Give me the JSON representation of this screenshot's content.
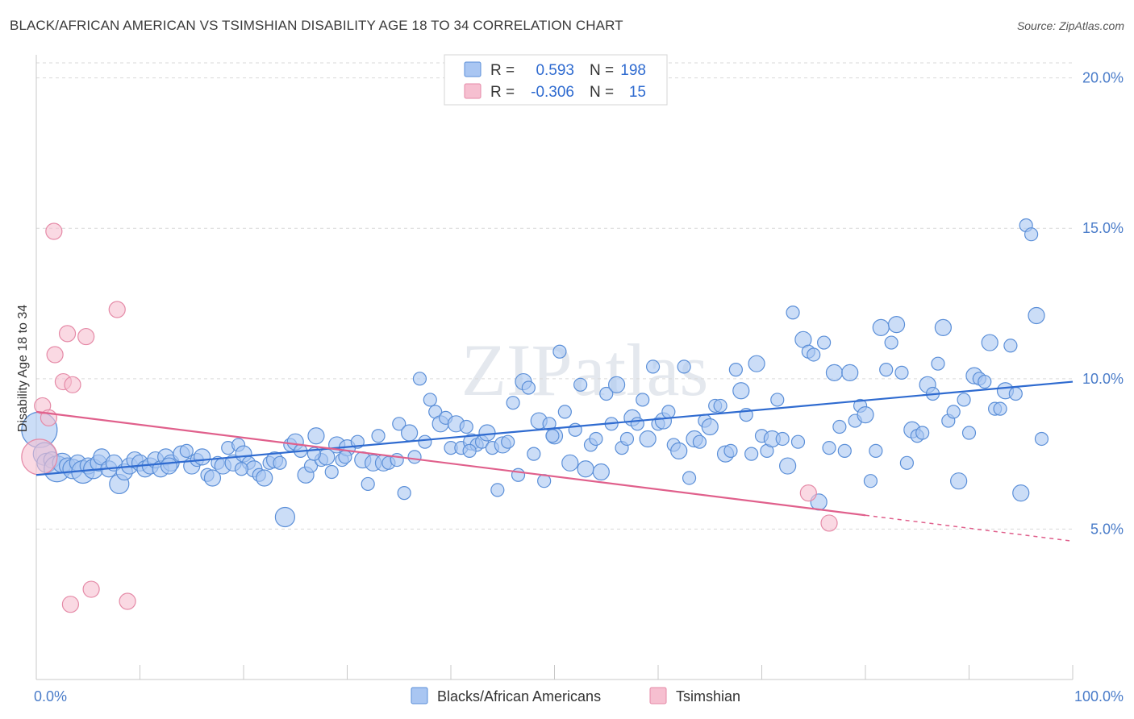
{
  "title": "BLACK/AFRICAN AMERICAN VS TSIMSHIAN DISABILITY AGE 18 TO 34 CORRELATION CHART",
  "source": "Source: ZipAtlas.com",
  "watermark": "ZIPatlas",
  "colors": {
    "blue_fill": "#a9c6f2",
    "blue_stroke": "#5b8fd8",
    "blue_line": "#2f6bd0",
    "pink_fill": "#f6bfd0",
    "pink_stroke": "#e58aa7",
    "pink_line": "#e0608c",
    "grid": "#d9d9d9",
    "tick_text": "#4a7cc9"
  },
  "legend": {
    "rows": [
      {
        "r_label": "R =",
        "r_value": "0.593",
        "n_label": "N =",
        "n_value": "198"
      },
      {
        "r_label": "R =",
        "r_value": "-0.306",
        "n_label": "N =",
        "n_value": "15"
      }
    ]
  },
  "bottom_legend": [
    "Blacks/African Americans",
    "Tsimshian"
  ],
  "chart_data": {
    "type": "scatter",
    "xlabel": "",
    "ylabel": "Disability Age 18 to 34",
    "x_range": [
      0,
      100
    ],
    "y_range": [
      0,
      20.5
    ],
    "x_tick_labels": [
      "0.0%",
      "100.0%"
    ],
    "y_ticks": [
      5,
      10,
      15,
      20
    ],
    "y_tick_labels": [
      "5.0%",
      "10.0%",
      "15.0%",
      "20.0%"
    ],
    "grid": true,
    "series": [
      {
        "name": "Blacks/African Americans",
        "trend": {
          "x": [
            0,
            100
          ],
          "y": [
            6.8,
            9.9
          ],
          "solid_to": 100
        },
        "points": [
          [
            0.3,
            8.3,
            22
          ],
          [
            0.8,
            7.5,
            14
          ],
          [
            1,
            7.2,
            12
          ],
          [
            1.5,
            7.3,
            10
          ],
          [
            2,
            7.0,
            16
          ],
          [
            2.5,
            7.2,
            12
          ],
          [
            3,
            7.1,
            10
          ],
          [
            3.5,
            7.0,
            12
          ],
          [
            4,
            7.2,
            10
          ],
          [
            4.5,
            6.9,
            14
          ],
          [
            5,
            7.1,
            10
          ],
          [
            5.5,
            7.0,
            12
          ],
          [
            6,
            7.2,
            10
          ],
          [
            6.3,
            7.4,
            10
          ],
          [
            7,
            7.0,
            10
          ],
          [
            7.5,
            7.2,
            10
          ],
          [
            8,
            6.5,
            12
          ],
          [
            8.5,
            6.9,
            10
          ],
          [
            9,
            7.1,
            10
          ],
          [
            9.5,
            7.3,
            10
          ],
          [
            10,
            7.2,
            10
          ],
          [
            10.5,
            7.0,
            10
          ],
          [
            11,
            7.1,
            10
          ],
          [
            11.5,
            7.3,
            10
          ],
          [
            12,
            7.0,
            10
          ],
          [
            12.5,
            7.4,
            10
          ],
          [
            13,
            7.2,
            10
          ],
          [
            14,
            7.5,
            10
          ],
          [
            14.5,
            7.6,
            8
          ],
          [
            15,
            7.1,
            10
          ],
          [
            15.5,
            7.3,
            8
          ],
          [
            16,
            7.4,
            10
          ],
          [
            16.5,
            6.8,
            8
          ],
          [
            17,
            6.7,
            10
          ],
          [
            17.5,
            7.2,
            8
          ],
          [
            18,
            7.1,
            10
          ],
          [
            18.5,
            7.7,
            8
          ],
          [
            19,
            7.2,
            10
          ],
          [
            19.5,
            7.8,
            8
          ],
          [
            20,
            7.5,
            10
          ],
          [
            20.5,
            7.2,
            8
          ],
          [
            21,
            7.0,
            10
          ],
          [
            21.5,
            6.8,
            8
          ],
          [
            22,
            6.7,
            10
          ],
          [
            22.5,
            7.2,
            8
          ],
          [
            23,
            7.3,
            10
          ],
          [
            23.5,
            7.2,
            8
          ],
          [
            24,
            5.4,
            12
          ],
          [
            24.5,
            7.8,
            8
          ],
          [
            25,
            7.9,
            10
          ],
          [
            25.5,
            7.6,
            8
          ],
          [
            26,
            6.8,
            10
          ],
          [
            26.5,
            7.1,
            8
          ],
          [
            27,
            8.1,
            10
          ],
          [
            27.5,
            7.3,
            8
          ],
          [
            28,
            7.4,
            10
          ],
          [
            28.5,
            6.9,
            8
          ],
          [
            29,
            7.8,
            10
          ],
          [
            29.5,
            7.3,
            8
          ],
          [
            30,
            7.7,
            10
          ],
          [
            31,
            7.9,
            8
          ],
          [
            31.5,
            7.3,
            10
          ],
          [
            32,
            6.5,
            8
          ],
          [
            32.5,
            7.2,
            10
          ],
          [
            33,
            8.1,
            8
          ],
          [
            33.5,
            7.2,
            10
          ],
          [
            34,
            7.2,
            8
          ],
          [
            35,
            8.5,
            8
          ],
          [
            35.5,
            6.2,
            8
          ],
          [
            36,
            8.2,
            10
          ],
          [
            36.5,
            7.4,
            8
          ],
          [
            37,
            10.0,
            8
          ],
          [
            37.5,
            7.9,
            8
          ],
          [
            38,
            9.3,
            8
          ],
          [
            38.5,
            8.9,
            8
          ],
          [
            39,
            8.5,
            10
          ],
          [
            39.5,
            8.7,
            8
          ],
          [
            40,
            7.7,
            8
          ],
          [
            40.5,
            8.5,
            10
          ],
          [
            41,
            7.7,
            8
          ],
          [
            41.5,
            8.4,
            8
          ],
          [
            42,
            7.9,
            10
          ],
          [
            42.5,
            7.8,
            8
          ],
          [
            43,
            7.9,
            8
          ],
          [
            43.5,
            8.2,
            10
          ],
          [
            44,
            7.7,
            8
          ],
          [
            44.5,
            6.3,
            8
          ],
          [
            45,
            7.8,
            10
          ],
          [
            45.5,
            7.9,
            8
          ],
          [
            46,
            9.2,
            8
          ],
          [
            46.5,
            6.8,
            8
          ],
          [
            47,
            9.9,
            10
          ],
          [
            47.5,
            9.7,
            8
          ],
          [
            48,
            7.5,
            8
          ],
          [
            48.5,
            8.6,
            10
          ],
          [
            49,
            6.6,
            8
          ],
          [
            49.5,
            8.5,
            8
          ],
          [
            50,
            8.1,
            10
          ],
          [
            50.5,
            10.9,
            8
          ],
          [
            51,
            8.9,
            8
          ],
          [
            51.5,
            7.2,
            10
          ],
          [
            52,
            8.3,
            8
          ],
          [
            52.5,
            9.8,
            8
          ],
          [
            53,
            7.0,
            10
          ],
          [
            53.5,
            7.8,
            8
          ],
          [
            54,
            8.0,
            8
          ],
          [
            54.5,
            6.9,
            10
          ],
          [
            55,
            9.5,
            8
          ],
          [
            55.5,
            8.5,
            8
          ],
          [
            56,
            9.8,
            10
          ],
          [
            56.5,
            7.7,
            8
          ],
          [
            57,
            8.0,
            8
          ],
          [
            57.5,
            8.7,
            10
          ],
          [
            58,
            8.5,
            8
          ],
          [
            58.5,
            9.3,
            8
          ],
          [
            59,
            8.0,
            10
          ],
          [
            59.5,
            10.4,
            8
          ],
          [
            60,
            8.5,
            8
          ],
          [
            60.5,
            8.6,
            10
          ],
          [
            61,
            8.9,
            8
          ],
          [
            61.5,
            7.8,
            8
          ],
          [
            62,
            7.6,
            10
          ],
          [
            62.5,
            10.4,
            8
          ],
          [
            63,
            6.7,
            8
          ],
          [
            63.5,
            8.0,
            10
          ],
          [
            64,
            7.9,
            8
          ],
          [
            64.5,
            8.6,
            8
          ],
          [
            65,
            8.4,
            10
          ],
          [
            65.5,
            9.1,
            8
          ],
          [
            66,
            9.1,
            8
          ],
          [
            66.5,
            7.5,
            10
          ],
          [
            67,
            7.6,
            8
          ],
          [
            67.5,
            10.3,
            8
          ],
          [
            68,
            9.6,
            10
          ],
          [
            68.5,
            8.8,
            8
          ],
          [
            69,
            7.5,
            8
          ],
          [
            69.5,
            10.5,
            10
          ],
          [
            70,
            8.1,
            8
          ],
          [
            70.5,
            7.6,
            8
          ],
          [
            71,
            8.0,
            10
          ],
          [
            71.5,
            9.3,
            8
          ],
          [
            72,
            8.0,
            8
          ],
          [
            72.5,
            7.1,
            10
          ],
          [
            73,
            12.2,
            8
          ],
          [
            73.5,
            7.9,
            8
          ],
          [
            74,
            11.3,
            10
          ],
          [
            74.5,
            10.9,
            8
          ],
          [
            75,
            10.8,
            8
          ],
          [
            75.5,
            5.9,
            10
          ],
          [
            76,
            11.2,
            8
          ],
          [
            76.5,
            7.7,
            8
          ],
          [
            77,
            10.2,
            10
          ],
          [
            77.5,
            8.4,
            8
          ],
          [
            78,
            7.6,
            8
          ],
          [
            78.5,
            10.2,
            10
          ],
          [
            79,
            8.6,
            8
          ],
          [
            79.5,
            9.1,
            8
          ],
          [
            80,
            8.8,
            10
          ],
          [
            80.5,
            6.6,
            8
          ],
          [
            81,
            7.6,
            8
          ],
          [
            81.5,
            11.7,
            10
          ],
          [
            82,
            10.3,
            8
          ],
          [
            82.5,
            11.2,
            8
          ],
          [
            83,
            11.8,
            10
          ],
          [
            83.5,
            10.2,
            8
          ],
          [
            84,
            7.2,
            8
          ],
          [
            84.5,
            8.3,
            10
          ],
          [
            85,
            8.1,
            8
          ],
          [
            85.5,
            8.2,
            8
          ],
          [
            86,
            9.8,
            10
          ],
          [
            86.5,
            9.5,
            8
          ],
          [
            87,
            10.5,
            8
          ],
          [
            87.5,
            11.7,
            10
          ],
          [
            88,
            8.6,
            8
          ],
          [
            88.5,
            8.9,
            8
          ],
          [
            89,
            6.6,
            10
          ],
          [
            89.5,
            9.3,
            8
          ],
          [
            90,
            8.2,
            8
          ],
          [
            90.5,
            10.1,
            10
          ],
          [
            91,
            10.0,
            8
          ],
          [
            91.5,
            9.9,
            8
          ],
          [
            92,
            11.2,
            10
          ],
          [
            92.5,
            9.0,
            8
          ],
          [
            93,
            9.0,
            8
          ],
          [
            93.5,
            9.6,
            10
          ],
          [
            94,
            11.1,
            8
          ],
          [
            94.5,
            9.5,
            8
          ],
          [
            95,
            6.2,
            10
          ],
          [
            95.5,
            15.1,
            8
          ],
          [
            96,
            14.8,
            8
          ],
          [
            96.5,
            12.1,
            10
          ],
          [
            97,
            8.0,
            8
          ],
          [
            12.8,
            7.1,
            10
          ],
          [
            19.8,
            7.0,
            8
          ],
          [
            26.8,
            7.5,
            8
          ],
          [
            29.8,
            7.4,
            8
          ],
          [
            34.8,
            7.3,
            8
          ],
          [
            41.8,
            7.6,
            8
          ],
          [
            49.8,
            8.1,
            8
          ]
        ]
      },
      {
        "name": "Tsimshian",
        "trend": {
          "x": [
            0,
            100
          ],
          "y": [
            8.9,
            4.6
          ],
          "solid_to": 80
        },
        "points": [
          [
            0.3,
            7.4,
            22
          ],
          [
            0.6,
            9.1,
            10
          ],
          [
            1.2,
            8.7,
            10
          ],
          [
            1.7,
            14.9,
            10
          ],
          [
            1.8,
            10.8,
            10
          ],
          [
            2.6,
            9.9,
            10
          ],
          [
            3.0,
            11.5,
            10
          ],
          [
            3.5,
            9.8,
            10
          ],
          [
            4.8,
            11.4,
            10
          ],
          [
            7.8,
            12.3,
            10
          ],
          [
            3.3,
            2.5,
            10
          ],
          [
            5.3,
            3.0,
            10
          ],
          [
            8.8,
            2.6,
            10
          ],
          [
            74.5,
            6.2,
            10
          ],
          [
            76.5,
            5.2,
            10
          ]
        ]
      }
    ]
  }
}
